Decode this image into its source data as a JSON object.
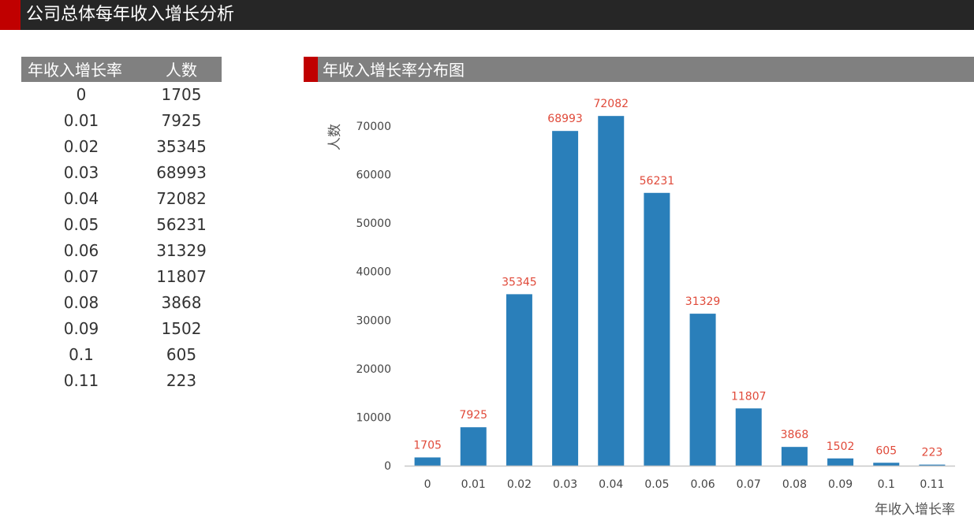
{
  "page": {
    "title": "公司总体每年收入增长分析"
  },
  "table": {
    "headers": [
      "年收入增长率",
      "人数"
    ],
    "rows": [
      [
        "0",
        "1705"
      ],
      [
        "0.01",
        "7925"
      ],
      [
        "0.02",
        "35345"
      ],
      [
        "0.03",
        "68993"
      ],
      [
        "0.04",
        "72082"
      ],
      [
        "0.05",
        "56231"
      ],
      [
        "0.06",
        "31329"
      ],
      [
        "0.07",
        "11807"
      ],
      [
        "0.08",
        "3868"
      ],
      [
        "0.09",
        "1502"
      ],
      [
        "0.1",
        "605"
      ],
      [
        "0.11",
        "223"
      ]
    ]
  },
  "colors": {
    "bar": "#2a7fba",
    "accent": "#c00000",
    "label": "#e04a3a"
  },
  "chart_data": {
    "type": "bar",
    "title": "年收入增长率分布图",
    "xlabel": "年收入增长率",
    "ylabel": "人数",
    "categories": [
      "0",
      "0.01",
      "0.02",
      "0.03",
      "0.04",
      "0.05",
      "0.06",
      "0.07",
      "0.08",
      "0.09",
      "0.1",
      "0.11"
    ],
    "values": [
      1705,
      7925,
      35345,
      68993,
      72082,
      56231,
      31329,
      11807,
      3868,
      1502,
      605,
      223
    ],
    "yticks": [
      0,
      10000,
      20000,
      30000,
      40000,
      50000,
      60000,
      70000
    ],
    "ylim": [
      0,
      70000
    ],
    "grid": false,
    "legend": "none",
    "data_labels": true
  }
}
